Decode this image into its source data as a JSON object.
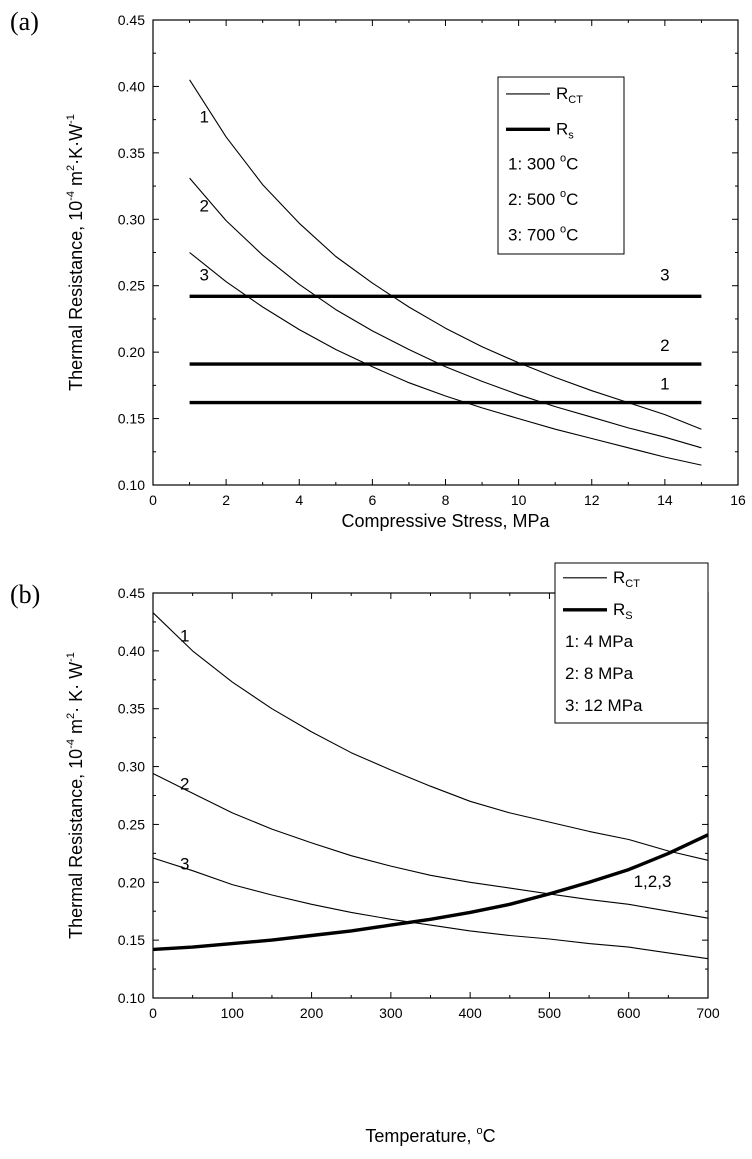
{
  "chart_data": [
    {
      "panel_label": "(a)",
      "type": "line",
      "xlabel": "Compressive Stress, MPa",
      "ylabel": {
        "base": "Thermal Resistance, 10",
        "exp": "-4",
        "mid": " m",
        "exp2": "2",
        "tail": "·K·W",
        "exp3": "-1"
      },
      "xlim": [
        0,
        16
      ],
      "ylim": [
        0.1,
        0.45
      ],
      "xticks": [
        "0",
        "2",
        "4",
        "6",
        "8",
        "10",
        "12",
        "14",
        "16"
      ],
      "yticks": [
        "0.10",
        "0.15",
        "0.20",
        "0.25",
        "0.30",
        "0.35",
        "0.40",
        "0.45"
      ],
      "legend": {
        "placement": "top-right",
        "entries": [
          {
            "line": "thin",
            "label": "R",
            "sub": "CT"
          },
          {
            "line": "thick",
            "label": "R",
            "sub": "s"
          },
          {
            "line": "none",
            "label": "1: 300 ",
            "sup": "o",
            "tail": "C"
          },
          {
            "line": "none",
            "label": "2: 500 ",
            "sup": "o",
            "tail": "C"
          },
          {
            "line": "none",
            "label": "3: 700 ",
            "sup": "o",
            "tail": "C"
          }
        ]
      },
      "series": [
        {
          "label": "1",
          "kind": "R_CT",
          "x": [
            1,
            2,
            3,
            4,
            5,
            6,
            7,
            8,
            9,
            10,
            11,
            12,
            13,
            14,
            15
          ],
          "y": [
            0.405,
            0.362,
            0.326,
            0.297,
            0.272,
            0.252,
            0.234,
            0.218,
            0.204,
            0.192,
            0.181,
            0.171,
            0.162,
            0.153,
            0.142
          ]
        },
        {
          "label": "2",
          "kind": "R_CT",
          "x": [
            1,
            2,
            3,
            4,
            5,
            6,
            7,
            8,
            9,
            10,
            11,
            12,
            13,
            14,
            15
          ],
          "y": [
            0.331,
            0.299,
            0.273,
            0.251,
            0.232,
            0.216,
            0.202,
            0.189,
            0.178,
            0.168,
            0.159,
            0.151,
            0.143,
            0.136,
            0.128
          ]
        },
        {
          "label": "3",
          "kind": "R_CT",
          "x": [
            1,
            2,
            3,
            4,
            5,
            6,
            7,
            8,
            9,
            10,
            11,
            12,
            13,
            14,
            15
          ],
          "y": [
            0.275,
            0.253,
            0.234,
            0.217,
            0.202,
            0.189,
            0.177,
            0.167,
            0.158,
            0.15,
            0.142,
            0.135,
            0.128,
            0.121,
            0.115
          ]
        },
        {
          "label": "3",
          "kind": "R_s",
          "x": [
            1,
            15
          ],
          "y": [
            0.242,
            0.242
          ]
        },
        {
          "label": "2",
          "kind": "R_s",
          "x": [
            1,
            15
          ],
          "y": [
            0.191,
            0.191
          ]
        },
        {
          "label": "1",
          "kind": "R_s",
          "x": [
            1,
            15
          ],
          "y": [
            0.162,
            0.162
          ]
        }
      ],
      "annotations": [
        {
          "text": "1",
          "x": 1.4,
          "y": 0.373
        },
        {
          "text": "2",
          "x": 1.4,
          "y": 0.306
        },
        {
          "text": "3",
          "x": 1.4,
          "y": 0.254
        },
        {
          "text": "3",
          "x": 14.0,
          "y": 0.254
        },
        {
          "text": "2",
          "x": 14.0,
          "y": 0.201
        },
        {
          "text": "1",
          "x": 14.0,
          "y": 0.172
        }
      ]
    },
    {
      "panel_label": "(b)",
      "type": "line",
      "xlabel": {
        "base": "Temperature, ",
        "sup": "o",
        "tail": "C"
      },
      "ylabel": {
        "base": "Thermal Resistance, 10",
        "exp": "-4",
        "mid": "  m",
        "exp2": "2",
        "tail": "· K· W",
        "exp3": "-1"
      },
      "xlim": [
        0,
        700
      ],
      "ylim": [
        0.1,
        0.45
      ],
      "xticks": [
        "0",
        "100",
        "200",
        "300",
        "400",
        "500",
        "600",
        "700"
      ],
      "yticks": [
        "0.10",
        "0.15",
        "0.20",
        "0.25",
        "0.30",
        "0.35",
        "0.40",
        "0.45"
      ],
      "legend": {
        "placement": "top-right",
        "entries": [
          {
            "line": "thin",
            "label": "R",
            "sub": "CT"
          },
          {
            "line": "thick",
            "label": "R",
            "sub": "S"
          },
          {
            "line": "none",
            "label": "1: 4  MPa"
          },
          {
            "line": "none",
            "label": "2: 8  MPa"
          },
          {
            "line": "none",
            "label": "3: 12 MPa"
          }
        ]
      },
      "series": [
        {
          "label": "1",
          "kind": "R_CT",
          "x": [
            0,
            50,
            100,
            150,
            200,
            250,
            300,
            350,
            400,
            450,
            500,
            550,
            600,
            650,
            700
          ],
          "y": [
            0.433,
            0.4,
            0.373,
            0.35,
            0.33,
            0.312,
            0.297,
            0.283,
            0.27,
            0.26,
            0.252,
            0.244,
            0.237,
            0.227,
            0.219
          ]
        },
        {
          "label": "2",
          "kind": "R_CT",
          "x": [
            0,
            50,
            100,
            150,
            200,
            250,
            300,
            350,
            400,
            450,
            500,
            550,
            600,
            650,
            700
          ],
          "y": [
            0.294,
            0.277,
            0.26,
            0.246,
            0.234,
            0.223,
            0.214,
            0.206,
            0.2,
            0.195,
            0.19,
            0.185,
            0.181,
            0.175,
            0.169
          ]
        },
        {
          "label": "3",
          "kind": "R_CT",
          "x": [
            0,
            50,
            100,
            150,
            200,
            250,
            300,
            350,
            400,
            450,
            500,
            550,
            600,
            650,
            700
          ],
          "y": [
            0.221,
            0.21,
            0.198,
            0.189,
            0.181,
            0.174,
            0.168,
            0.163,
            0.158,
            0.154,
            0.151,
            0.147,
            0.144,
            0.139,
            0.134
          ]
        },
        {
          "label": "1,2,3",
          "kind": "R_S",
          "x": [
            0,
            50,
            100,
            150,
            200,
            250,
            300,
            350,
            400,
            450,
            500,
            550,
            600,
            650,
            700
          ],
          "y": [
            0.142,
            0.144,
            0.147,
            0.15,
            0.154,
            0.158,
            0.163,
            0.168,
            0.174,
            0.181,
            0.19,
            0.2,
            0.211,
            0.225,
            0.241
          ]
        }
      ],
      "annotations": [
        {
          "text": "1",
          "x": 40,
          "y": 0.408
        },
        {
          "text": "2",
          "x": 40,
          "y": 0.28
        },
        {
          "text": "3",
          "x": 40,
          "y": 0.211
        },
        {
          "text": "1,2,3",
          "x": 630,
          "y": 0.196
        }
      ]
    }
  ]
}
